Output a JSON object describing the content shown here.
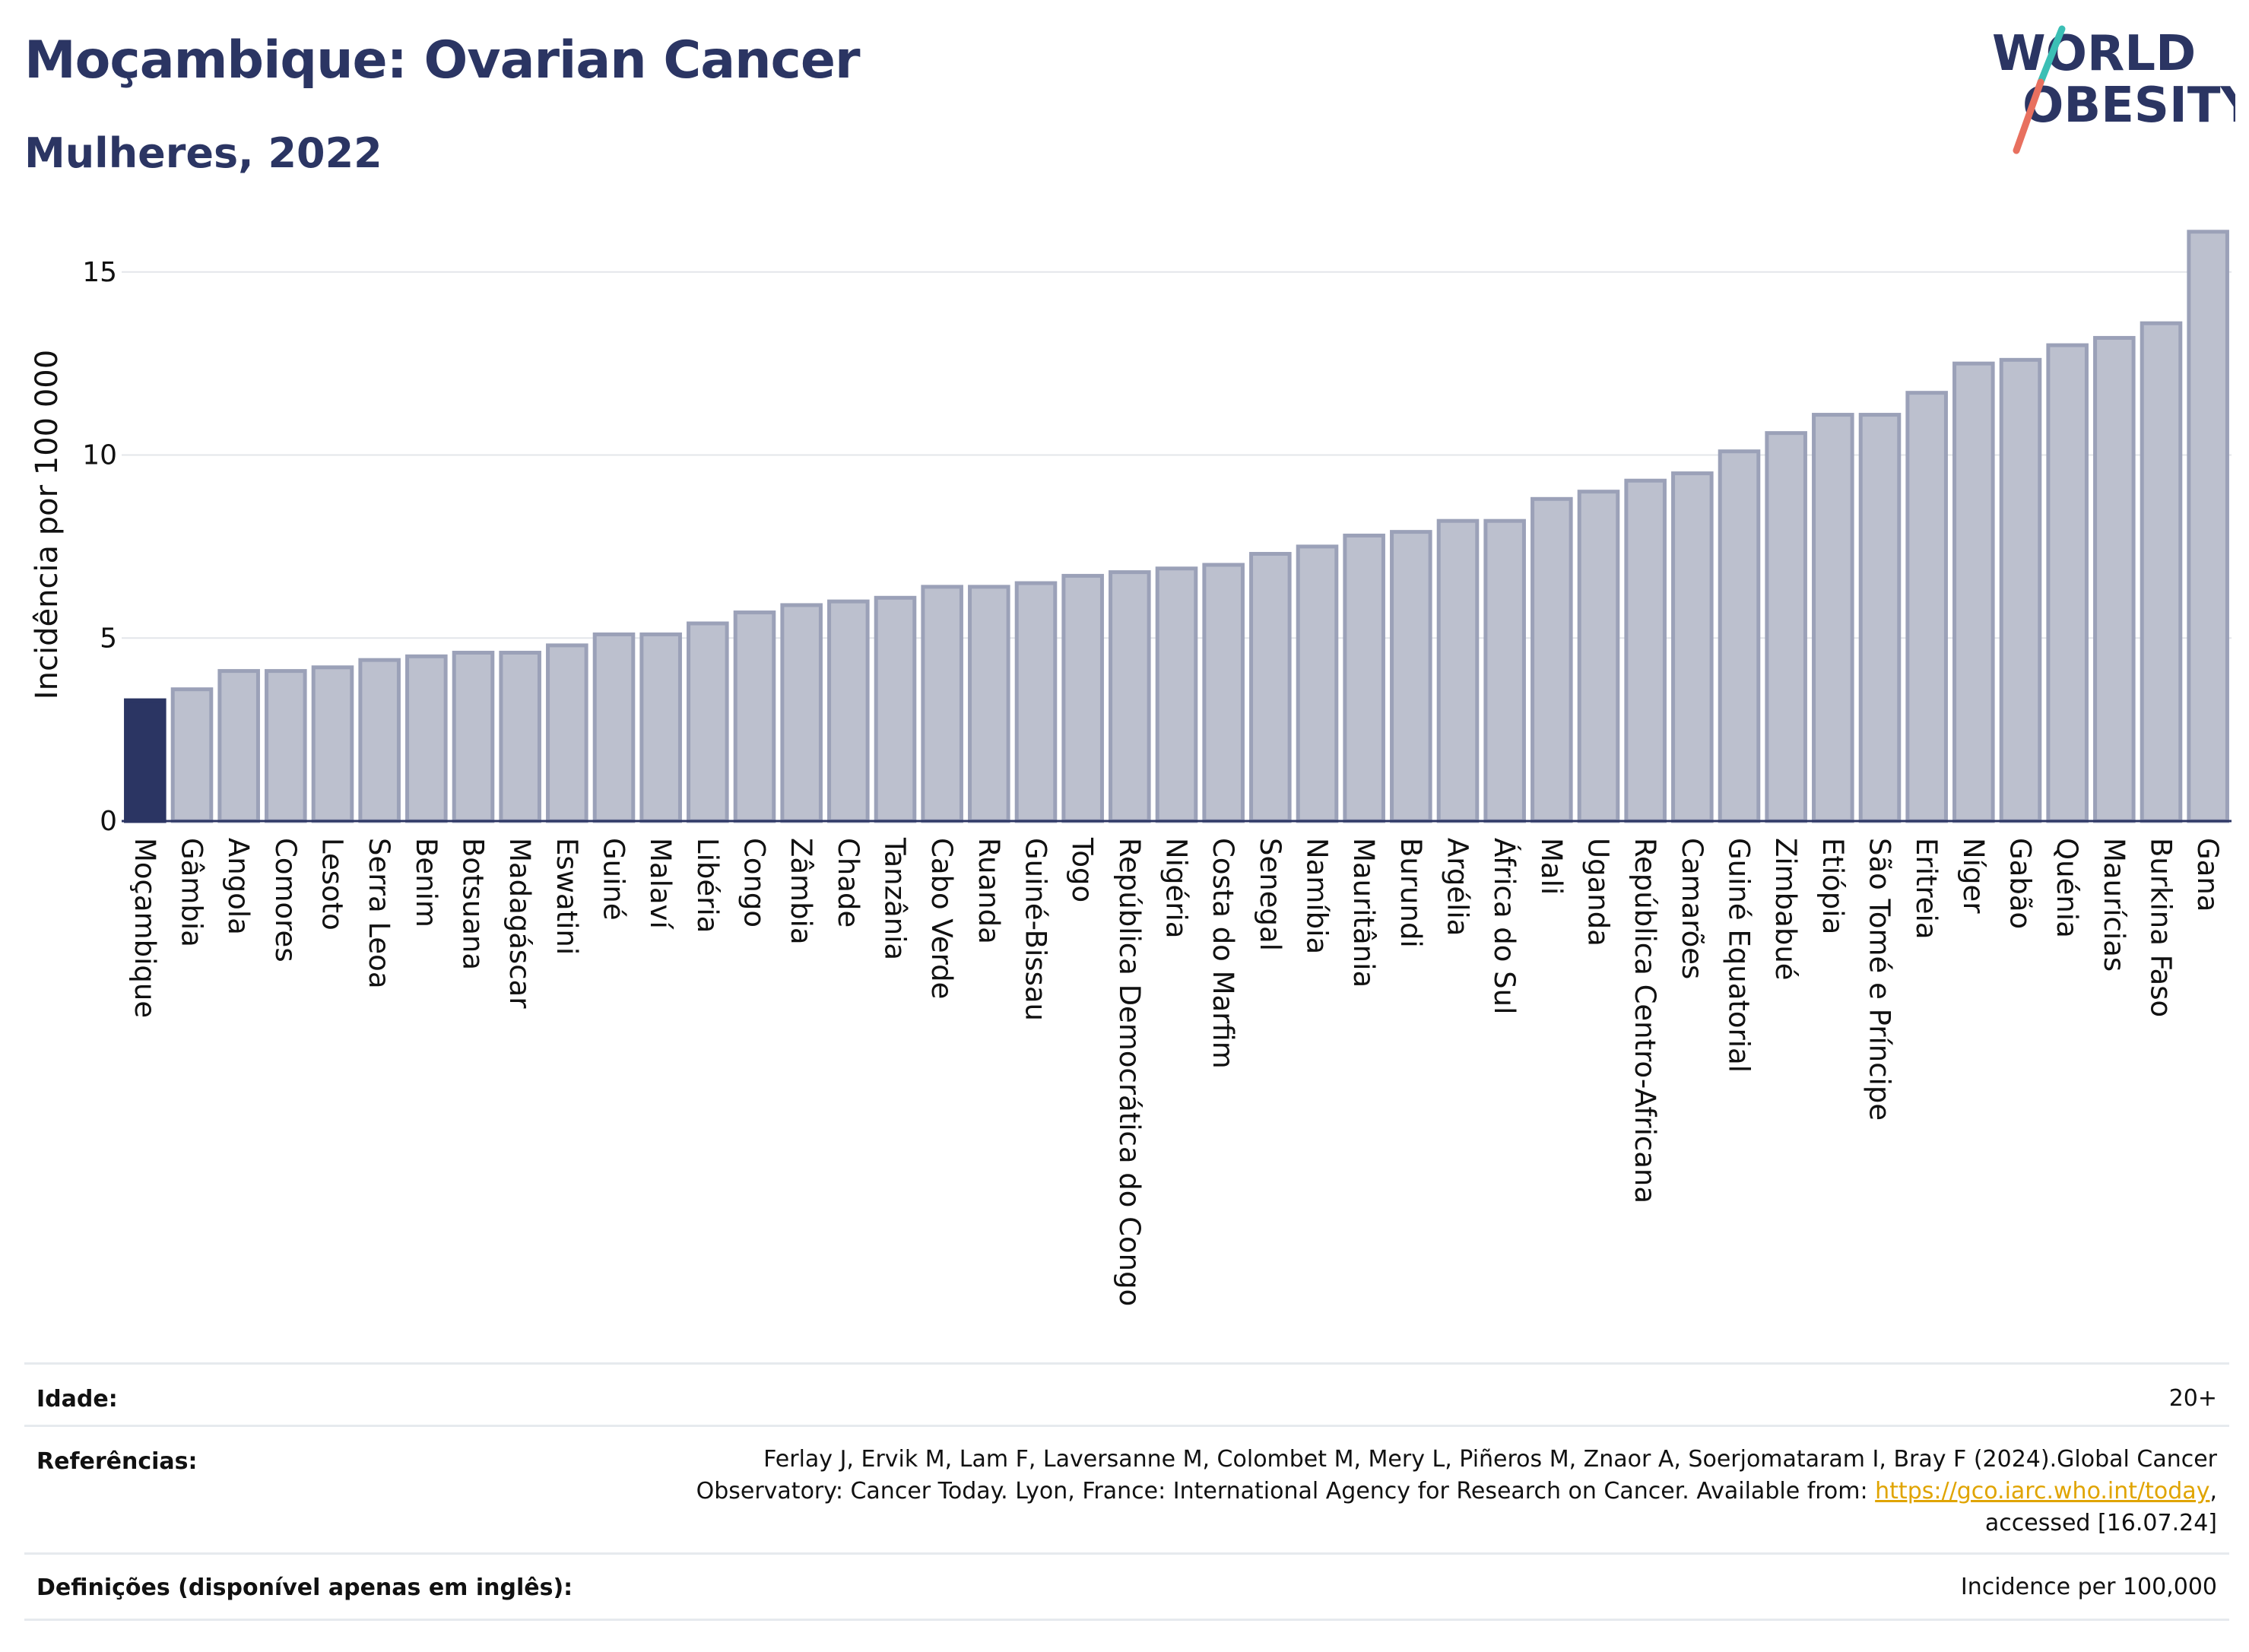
{
  "header": {
    "title": "Moçambique: Ovarian Cancer",
    "subtitle": "Mulheres, 2022",
    "logo_line1": "WORLD",
    "logo_line2": "OBESITY"
  },
  "colors": {
    "highlight": "#2b3563",
    "bar": "#bcc0ce",
    "bar_stroke": "#9ba1b8",
    "title": "#2b3563",
    "logo_teal": "#3bbfb5",
    "logo_coral": "#e8705f"
  },
  "chart_data": {
    "type": "bar",
    "ylabel": "Incidência por 100 000",
    "ylim": [
      0,
      16.2
    ],
    "yticks": [
      0,
      5,
      10,
      15
    ],
    "grid": true,
    "highlight_category": "Moçambique",
    "categories": [
      "Moçambique",
      "Gâmbia",
      "Angola",
      "Comores",
      "Lesoto",
      "Serra Leoa",
      "Benim",
      "Botsuana",
      "Madagáscar",
      "Eswatini",
      "Guiné",
      "Malaví",
      "Libéria",
      "Congo",
      "Zâmbia",
      "Chade",
      "Tanzânia",
      "Cabo Verde",
      "Ruanda",
      "Guiné-Bissau",
      "Togo",
      "República Democrática do Congo",
      "Nigéria",
      "Costa do Marfim",
      "Senegal",
      "Namíbia",
      "Mauritânia",
      "Burundi",
      "Argélia",
      "África do Sul",
      "Mali",
      "Uganda",
      "República Centro-Africana",
      "Camarões",
      "Guiné Equatorial",
      "Zimbabué",
      "Etiópia",
      "São Tomé e Príncipe",
      "Eritreia",
      "Níger",
      "Gabão",
      "Quénia",
      "Maurícias",
      "Burkina Faso",
      "Gana"
    ],
    "values": [
      3.3,
      3.6,
      4.1,
      4.1,
      4.2,
      4.4,
      4.5,
      4.6,
      4.6,
      4.8,
      5.1,
      5.1,
      5.4,
      5.7,
      5.9,
      6.0,
      6.1,
      6.4,
      6.4,
      6.5,
      6.7,
      6.8,
      6.9,
      7.0,
      7.3,
      7.5,
      7.8,
      7.9,
      8.2,
      8.2,
      8.8,
      9.0,
      9.3,
      9.5,
      10.1,
      10.6,
      11.1,
      11.1,
      11.7,
      12.5,
      12.6,
      13.0,
      13.2,
      13.6,
      16.1
    ]
  },
  "footer": {
    "age_label": "Idade:",
    "age_value": "20+",
    "ref_label": "Referências:",
    "ref_line1": "Ferlay J, Ervik M, Lam F, Laversanne M, Colombet M, Mery L, Piñeros M, Znaor A, Soerjomataram I, Bray F (2024).Global Cancer",
    "ref_line2_pre": "Observatory: Cancer Today. Lyon, France: International Agency for Research on Cancer. Available from: ",
    "ref_link": "https://gco.iarc.who.int/today",
    "ref_line2_post": ",",
    "ref_line3": "accessed [16.07.24]",
    "def_label": "Definições (disponível apenas em inglês):",
    "def_value": "Incidence per 100,000"
  }
}
